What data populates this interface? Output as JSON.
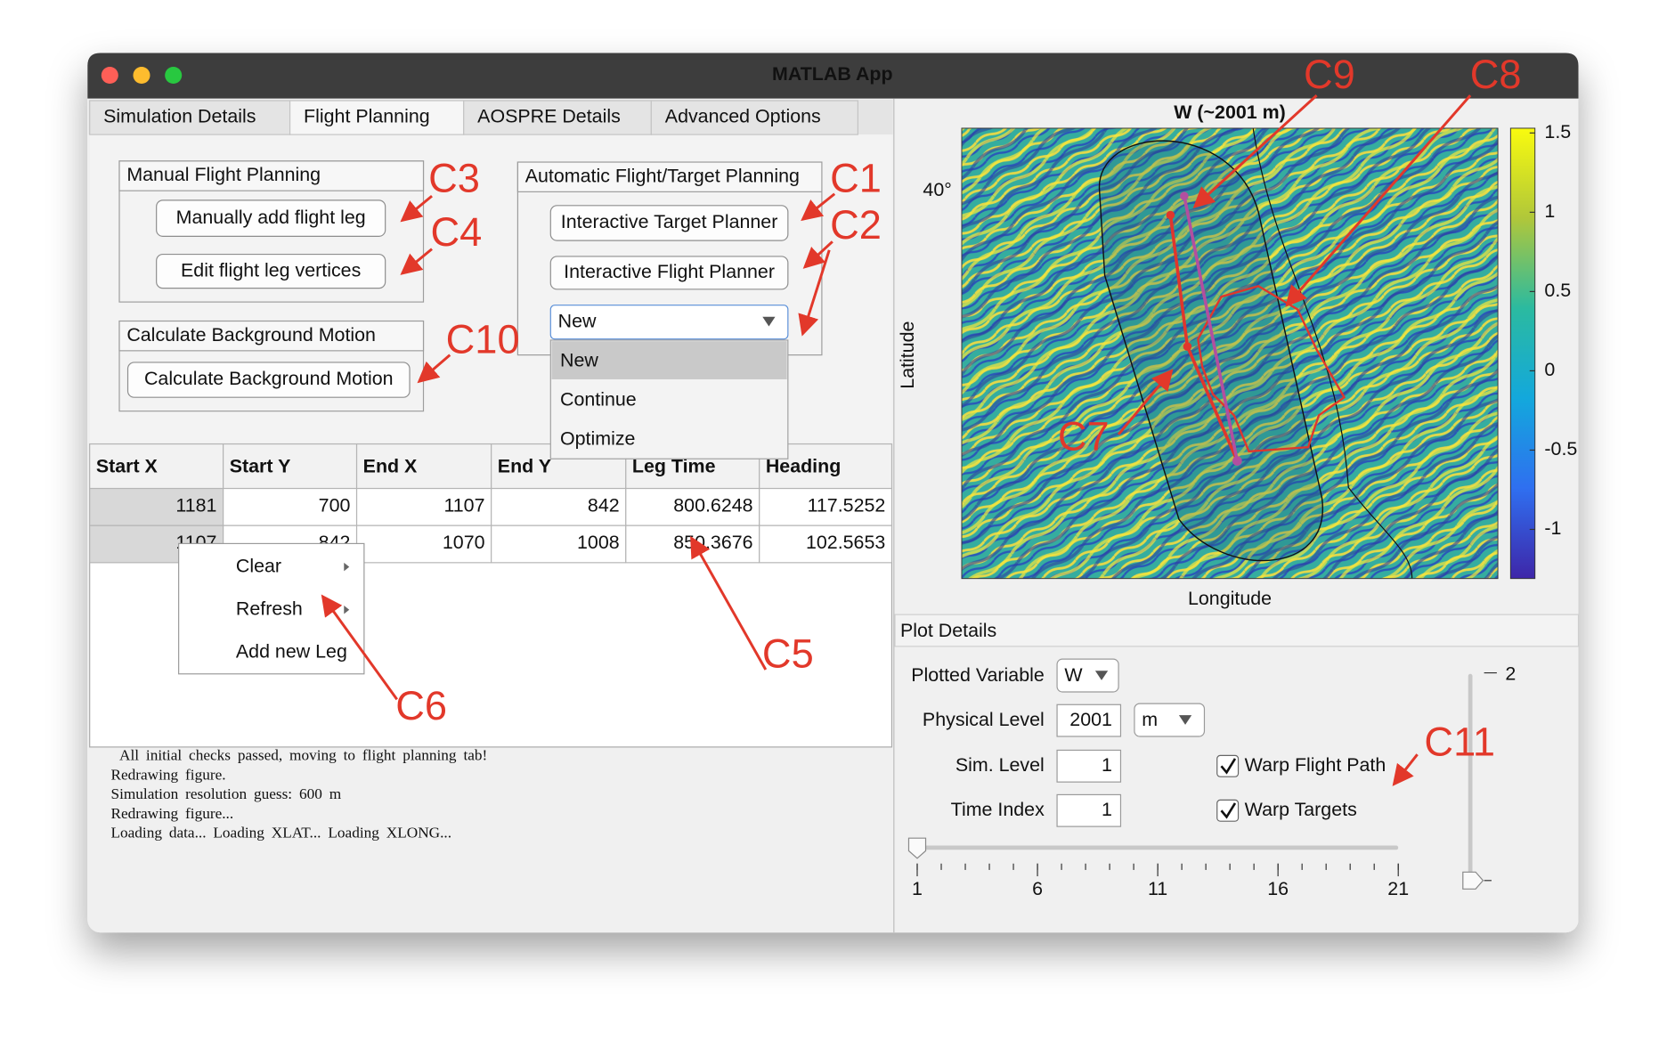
{
  "window": {
    "title": "MATLAB App"
  },
  "tabs": [
    "Simulation Details",
    "Flight Planning",
    "AOSPRE Details",
    "Advanced Options"
  ],
  "manual_panel": {
    "title": "Manual Flight Planning",
    "buttons": [
      "Manually add flight leg",
      "Edit flight leg vertices"
    ]
  },
  "background_panel": {
    "title": "Calculate Background Motion",
    "button": "Calculate Background Motion"
  },
  "auto_panel": {
    "title": "Automatic Flight/Target Planning",
    "buttons": [
      "Interactive Target Planner",
      "Interactive Flight Planner"
    ],
    "dropdown": {
      "selected": "New",
      "options": [
        "New",
        "Continue",
        "Optimize"
      ]
    }
  },
  "table": {
    "columns": [
      "Start X",
      "Start Y",
      "End X",
      "End Y",
      "Leg Time",
      "Heading"
    ],
    "rows": [
      [
        1181,
        700,
        1107,
        842,
        800.6248,
        117.5252
      ],
      [
        1107,
        842,
        1070,
        1008,
        850.3676,
        102.5653
      ]
    ]
  },
  "context_menu": {
    "items": [
      "Clear",
      "Refresh",
      "Add new Leg"
    ]
  },
  "console": {
    "lines": [
      "All initial checks passed, moving to flight planning tab!",
      "Redrawing figure.",
      "Simulation resolution guess: 600 m",
      "Redrawing figure...",
      "Loading data... Loading XLAT... Loading XLONG..."
    ]
  },
  "plot": {
    "title": "W (~2001 m)",
    "xlabel": "Longitude",
    "ylabel": "Latitude",
    "lat_tick": "40°",
    "colorbar": {
      "lim": [
        -1.31,
        1.53
      ],
      "ticks": [
        1.5,
        1,
        0.5,
        0,
        -0.5,
        -1
      ]
    }
  },
  "plot_details": {
    "title": "Plot Details",
    "fields": [
      {
        "label": "Plotted Variable",
        "value": "W"
      },
      {
        "label": "Physical Level",
        "value": 2001,
        "unit": "m"
      },
      {
        "label": "Sim. Level",
        "value": 1
      },
      {
        "label": "Time Index",
        "value": 1
      }
    ],
    "checkboxes": [
      "Warp Flight Path",
      "Warp Targets"
    ],
    "time_slider": {
      "lim": [
        1,
        21
      ],
      "ticks": [
        1,
        6,
        11,
        16,
        21
      ],
      "value": 1
    },
    "level_slider": {
      "max_label": "2"
    }
  },
  "annotations": [
    "C1",
    "C2",
    "C3",
    "C4",
    "C5",
    "C6",
    "C7",
    "C8",
    "C9",
    "C10",
    "C11"
  ]
}
